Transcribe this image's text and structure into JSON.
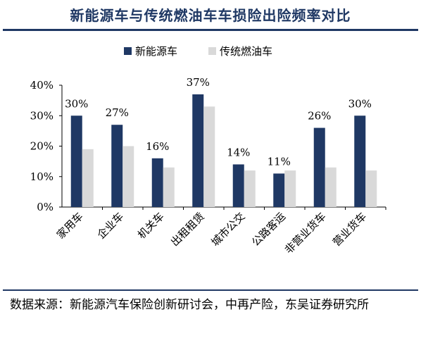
{
  "title": "新能源车与传统燃油车车损险出险频率对比",
  "source": "数据来源：新能源汽车保险创新研讨会，中再产险，东吴证券研究所",
  "colors": {
    "ev": "#1f3864",
    "ice": "#d9d9d9",
    "rule": "#1f3864"
  },
  "chart_data": {
    "type": "bar",
    "categories": [
      "家用车",
      "企业车",
      "机关车",
      "出租租赁",
      "城市公交",
      "公路客运",
      "非营业货车",
      "营业货车"
    ],
    "series": [
      {
        "name": "新能源车",
        "values": [
          30,
          27,
          16,
          37,
          14,
          11,
          26,
          30
        ],
        "labels": [
          "30%",
          "27%",
          "16%",
          "37%",
          "14%",
          "11%",
          "26%",
          "30%"
        ]
      },
      {
        "name": "传统燃油车",
        "values": [
          19,
          20,
          13,
          33,
          12,
          12,
          13,
          12
        ]
      }
    ],
    "yticks": [
      "0%",
      "10%",
      "20%",
      "30%",
      "40%"
    ],
    "ylim": [
      0,
      40
    ],
    "legend_position": "top-center",
    "grid": false
  }
}
